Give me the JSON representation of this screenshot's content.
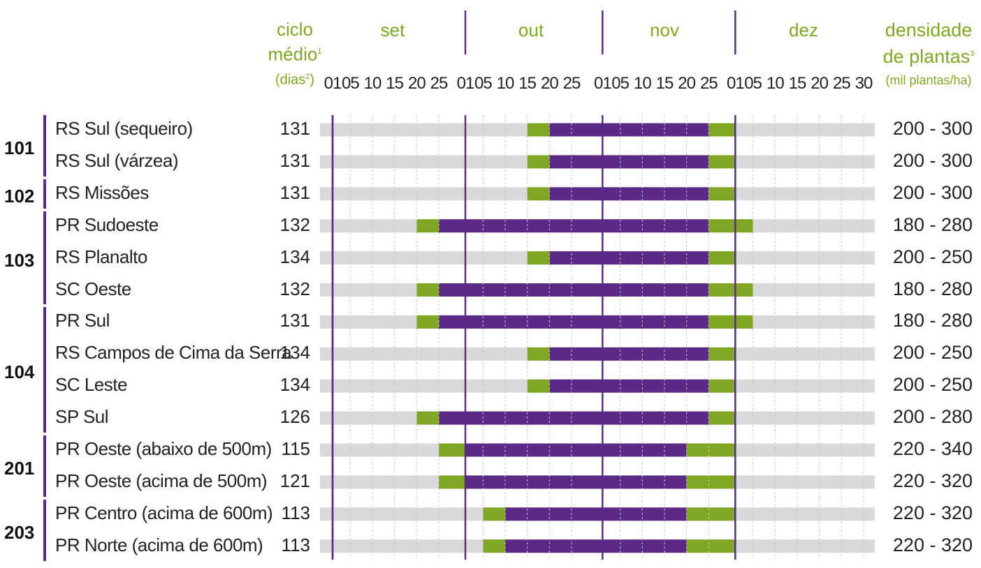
{
  "header": {
    "cycle_title_1": "ciclo",
    "cycle_title_2": "médio",
    "cycle_sup": "1",
    "cycle_unit_a": "(dias",
    "cycle_unit_sup": "2",
    "cycle_unit_b": ")",
    "density_title_1": "densidade",
    "density_title_2": "de plantas",
    "density_sup": "3",
    "density_unit": "(mil plantas/ha)"
  },
  "chart_data": {
    "type": "gantt",
    "months": [
      "set",
      "out",
      "nov",
      "dez"
    ],
    "tick_labels": [
      "01",
      "05",
      "10",
      "15",
      "20",
      "25",
      "01",
      "05",
      "10",
      "15",
      "20",
      "25",
      "01",
      "05",
      "10",
      "15",
      "20",
      "25",
      "01",
      "05",
      "10",
      "15",
      "20",
      "25",
      "30"
    ],
    "colors": {
      "background_bar": "#d9d9d9",
      "tolerated": "#7fa724",
      "recommended": "#5b2a86",
      "month_text": "#7fa724"
    },
    "groups": [
      {
        "label": "101",
        "rows": [
          0,
          1
        ]
      },
      {
        "label": "102",
        "rows": [
          2
        ]
      },
      {
        "label": "103",
        "rows": [
          3,
          4,
          5
        ]
      },
      {
        "label": "104",
        "rows": [
          6,
          7,
          8,
          9
        ]
      },
      {
        "label": "201",
        "rows": [
          10,
          11
        ]
      },
      {
        "label": "203",
        "rows": [
          12,
          13
        ]
      }
    ],
    "rows": [
      {
        "region": "RS Sul (sequeiro)",
        "cycle": "131",
        "density": "200 - 300",
        "green1": [
          "out 15",
          "out 20"
        ],
        "purple": [
          "out 20",
          "nov 25"
        ],
        "green2": [
          "nov 25",
          "dez 01"
        ]
      },
      {
        "region": "RS Sul (várzea)",
        "cycle": "131",
        "density": "200 - 300",
        "green1": [
          "out 15",
          "out 20"
        ],
        "purple": [
          "out 20",
          "nov 25"
        ],
        "green2": [
          "nov 25",
          "dez 01"
        ]
      },
      {
        "region": "RS Missões",
        "cycle": "131",
        "density": "200 - 300",
        "green1": [
          "out 15",
          "out 20"
        ],
        "purple": [
          "out 20",
          "nov 25"
        ],
        "green2": [
          "nov 25",
          "dez 01"
        ]
      },
      {
        "region": "PR Sudoeste",
        "cycle": "132",
        "density": "180 - 280",
        "green1": [
          "set 20",
          "set 25"
        ],
        "purple": [
          "set 25",
          "nov 25"
        ],
        "green2": [
          "nov 25",
          "dez 05"
        ]
      },
      {
        "region": "RS Planalto",
        "cycle": "134",
        "density": "200 - 250",
        "green1": [
          "out 15",
          "out 20"
        ],
        "purple": [
          "out 20",
          "nov 25"
        ],
        "green2": [
          "nov 25",
          "dez 01"
        ]
      },
      {
        "region": "SC Oeste",
        "cycle": "132",
        "density": "180 - 280",
        "green1": [
          "set 20",
          "set 25"
        ],
        "purple": [
          "set 25",
          "nov 25"
        ],
        "green2": [
          "nov 25",
          "dez 05"
        ]
      },
      {
        "region": "PR Sul",
        "cycle": "131",
        "density": "180 - 280",
        "green1": [
          "set 20",
          "set 25"
        ],
        "purple": [
          "set 25",
          "nov 25"
        ],
        "green2": [
          "nov 25",
          "dez 05"
        ]
      },
      {
        "region": "RS Campos de Cima da Serra",
        "cycle": "134",
        "density": "200 - 250",
        "green1": [
          "out 15",
          "out 20"
        ],
        "purple": [
          "out 20",
          "nov 25"
        ],
        "green2": [
          "nov 25",
          "dez 01"
        ]
      },
      {
        "region": "SC Leste",
        "cycle": "134",
        "density": "200 - 250",
        "green1": [
          "out 15",
          "out 20"
        ],
        "purple": [
          "out 20",
          "nov 25"
        ],
        "green2": [
          "nov 25",
          "dez 01"
        ]
      },
      {
        "region": "SP Sul",
        "cycle": "126",
        "density": "200 - 280",
        "green1": [
          "set 20",
          "set 25"
        ],
        "purple": [
          "set 25",
          "nov 25"
        ],
        "green2": [
          "nov 25",
          "dez 01"
        ]
      },
      {
        "region": "PR Oeste (abaixo de 500m)",
        "cycle": "115",
        "density": "220 - 340",
        "green1": [
          "set 25",
          "out 01"
        ],
        "purple": [
          "out 01",
          "nov 20"
        ],
        "green2": [
          "nov 20",
          "dez 01"
        ]
      },
      {
        "region": "PR Oeste (acima de 500m)",
        "cycle": "121",
        "density": "220 - 320",
        "green1": [
          "set 25",
          "out 01"
        ],
        "purple": [
          "out 01",
          "nov 20"
        ],
        "green2": [
          "nov 20",
          "dez 01"
        ]
      },
      {
        "region": "PR Centro (acima de 600m)",
        "cycle": "113",
        "density": "220 - 320",
        "green1": [
          "out 05",
          "out 10"
        ],
        "purple": [
          "out 10",
          "nov 20"
        ],
        "green2": [
          "nov 20",
          "dez 01"
        ]
      },
      {
        "region": "PR Norte (acima de 600m)",
        "cycle": "113",
        "density": "220 - 320",
        "green1": [
          "out 05",
          "out 10"
        ],
        "purple": [
          "out 10",
          "nov 20"
        ],
        "green2": [
          "nov 20",
          "dez 01"
        ]
      }
    ]
  }
}
